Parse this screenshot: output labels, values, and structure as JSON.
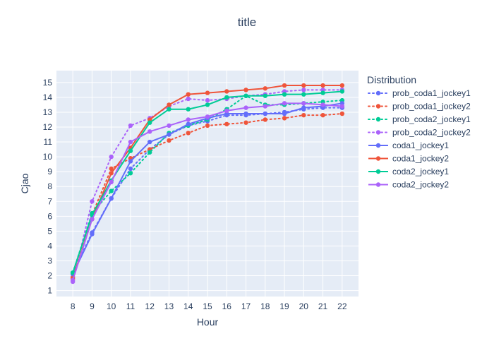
{
  "chart_data": {
    "type": "line",
    "title": "title",
    "xlabel": "Hour",
    "ylabel": "Cjao",
    "x": [
      8,
      9,
      10,
      11,
      12,
      13,
      14,
      15,
      16,
      17,
      18,
      19,
      20,
      21,
      22
    ],
    "x_ticks": [
      "8",
      "9",
      "10",
      "11",
      "12",
      "13",
      "14",
      "15",
      "16",
      "17",
      "18",
      "19",
      "20",
      "21",
      "22"
    ],
    "y_ticks": [
      "1",
      "2",
      "3",
      "4",
      "5",
      "6",
      "7",
      "8",
      "9",
      "10",
      "11",
      "12",
      "13",
      "14",
      "15"
    ],
    "xlim": [
      7.15,
      22.85
    ],
    "ylim": [
      0.6,
      15.8
    ],
    "grid": true,
    "legend": {
      "title": "Distribution",
      "position": "right"
    },
    "series": [
      {
        "name": "prob_coda1_jockey1",
        "color": "#636efa",
        "dash": "dot",
        "values": [
          2.2,
          4.9,
          7.2,
          9.2,
          10.5,
          11.5,
          12.1,
          12.4,
          12.8,
          12.8,
          12.9,
          13.0,
          13.2,
          13.3,
          13.3
        ]
      },
      {
        "name": "prob_coda1_jockey2",
        "color": "#EF553B",
        "dash": "dot",
        "values": [
          1.9,
          6.1,
          9.2,
          9.9,
          10.5,
          11.1,
          11.6,
          12.1,
          12.2,
          12.3,
          12.5,
          12.6,
          12.8,
          12.8,
          12.9
        ]
      },
      {
        "name": "prob_coda2_jockey1",
        "color": "#00cc96",
        "dash": "dot",
        "values": [
          2.2,
          6.2,
          7.7,
          8.9,
          10.3,
          11.6,
          12.1,
          12.5,
          13.2,
          14.1,
          13.5,
          13.5,
          13.6,
          13.7,
          13.8
        ]
      },
      {
        "name": "prob_coda2_jockey2",
        "color": "#ab63fa",
        "dash": "dot",
        "values": [
          1.6,
          7.0,
          10.0,
          12.1,
          12.6,
          13.4,
          13.9,
          13.8,
          13.9,
          14.1,
          14.2,
          14.4,
          14.5,
          14.5,
          14.5
        ]
      },
      {
        "name": "coda1_jockey1",
        "color": "#636efa",
        "dash": "solid",
        "values": [
          2.1,
          4.8,
          7.2,
          9.7,
          11.0,
          11.5,
          12.2,
          12.6,
          12.9,
          12.9,
          12.9,
          12.9,
          13.3,
          13.4,
          13.6
        ]
      },
      {
        "name": "coda1_jockey2",
        "color": "#EF553B",
        "dash": "solid",
        "values": [
          1.8,
          5.8,
          8.9,
          10.6,
          12.5,
          13.5,
          14.2,
          14.3,
          14.4,
          14.5,
          14.6,
          14.8,
          14.8,
          14.8,
          14.8
        ]
      },
      {
        "name": "coda2_jockey1",
        "color": "#00cc96",
        "dash": "solid",
        "values": [
          2.2,
          6.1,
          8.4,
          10.4,
          12.3,
          13.2,
          13.2,
          13.5,
          14.0,
          14.1,
          14.1,
          14.2,
          14.2,
          14.3,
          14.4
        ]
      },
      {
        "name": "coda2_jockey2",
        "color": "#ab63fa",
        "dash": "solid",
        "values": [
          1.7,
          5.8,
          8.3,
          11.0,
          11.7,
          12.1,
          12.5,
          12.7,
          13.1,
          13.3,
          13.4,
          13.6,
          13.6,
          13.5,
          13.4
        ]
      }
    ]
  }
}
